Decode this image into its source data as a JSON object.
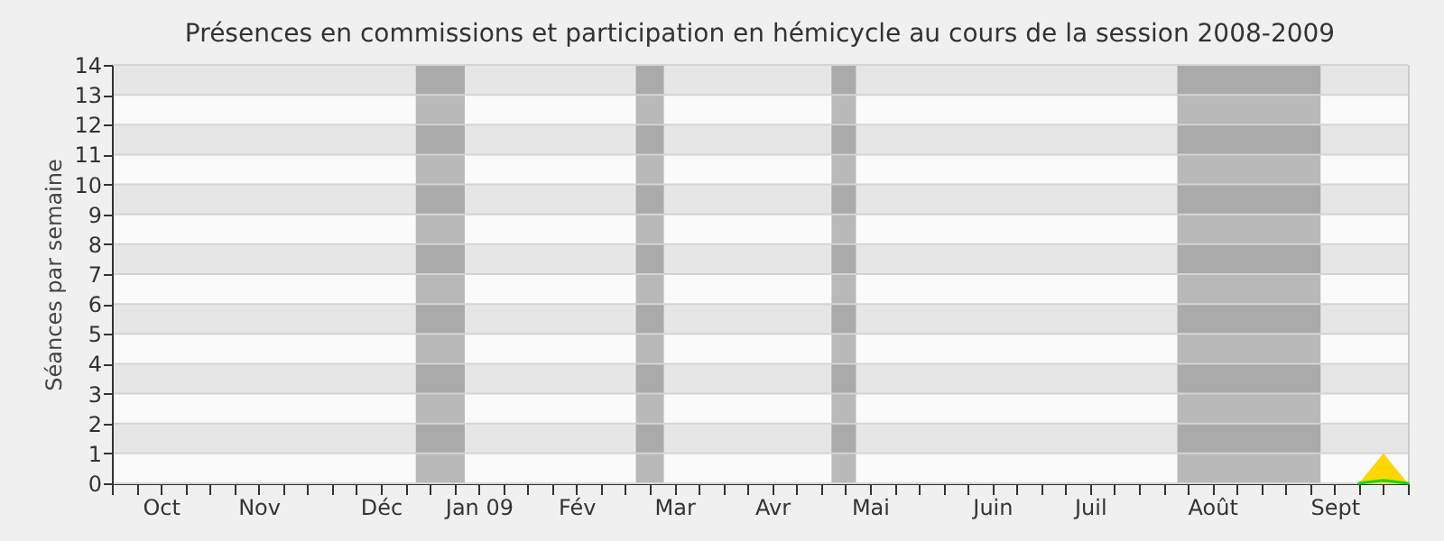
{
  "chart_data": {
    "type": "line",
    "title": "Présences en commissions et participation en hémicycle au cours de la session 2008-2009",
    "ylabel": "Séances par semaine",
    "x": [
      "2008-09-22",
      "2008-09-29",
      "2008-10-06",
      "2008-10-13",
      "2008-10-20",
      "2008-10-27",
      "2008-11-03",
      "2008-11-10",
      "2008-11-17",
      "2008-11-24",
      "2008-12-01",
      "2008-12-08",
      "2008-12-15",
      "2008-12-22",
      "2008-12-29",
      "2009-01-05",
      "2009-01-12",
      "2009-01-19",
      "2009-01-26",
      "2009-02-02",
      "2009-02-09",
      "2009-02-16",
      "2009-02-23",
      "2009-03-02",
      "2009-03-09",
      "2009-03-16",
      "2009-03-23",
      "2009-03-30",
      "2009-04-06",
      "2009-04-13",
      "2009-04-20",
      "2009-04-27",
      "2009-05-04",
      "2009-05-11",
      "2009-05-18",
      "2009-05-25",
      "2009-06-01",
      "2009-06-08",
      "2009-06-15",
      "2009-06-22",
      "2009-06-29",
      "2009-07-06",
      "2009-07-13",
      "2009-07-20",
      "2009-07-27",
      "2009-08-03",
      "2009-08-10",
      "2009-08-17",
      "2009-08-24",
      "2009-08-31",
      "2009-09-07",
      "2009-09-14",
      "2009-09-21",
      "2009-09-28"
    ],
    "series": [
      {
        "type": "area",
        "color": "#ffd700",
        "values": [
          0,
          0,
          0,
          0,
          0,
          0,
          0,
          0,
          0,
          0,
          0,
          0,
          0,
          0,
          0,
          0,
          0,
          0,
          0,
          0,
          0,
          0,
          0,
          0,
          0,
          0,
          0,
          0,
          0,
          0,
          0,
          0,
          0,
          0,
          0,
          0,
          0,
          0,
          0,
          0,
          0,
          0,
          0,
          0,
          0,
          0,
          0,
          0,
          0,
          0,
          0,
          0,
          1,
          0
        ]
      },
      {
        "color": "#00dd00",
        "values": [
          null,
          null,
          null,
          null,
          null,
          null,
          null,
          null,
          null,
          null,
          null,
          null,
          null,
          null,
          null,
          null,
          null,
          null,
          null,
          null,
          null,
          null,
          null,
          null,
          null,
          null,
          null,
          null,
          null,
          null,
          null,
          null,
          null,
          null,
          null,
          null,
          null,
          null,
          null,
          null,
          null,
          null,
          null,
          null,
          null,
          null,
          null,
          null,
          null,
          null,
          null,
          0,
          0.1,
          0
        ]
      }
    ],
    "xlim": [
      "2008-09-22",
      "2009-09-28"
    ],
    "xticks": [
      {
        "value": "2008-09-22",
        "label": null
      },
      {
        "value": "2008-09-29",
        "label": null
      },
      {
        "value": "2008-10-06",
        "label": "Oct"
      },
      {
        "value": "2008-10-13",
        "label": null
      },
      {
        "value": "2008-10-20",
        "label": null
      },
      {
        "value": "2008-10-27",
        "label": null
      },
      {
        "value": "2008-11-03",
        "label": "Nov"
      },
      {
        "value": "2008-11-10",
        "label": null
      },
      {
        "value": "2008-11-17",
        "label": null
      },
      {
        "value": "2008-11-24",
        "label": null
      },
      {
        "value": "2008-12-01",
        "label": null
      },
      {
        "value": "2008-12-08",
        "label": "Déc"
      },
      {
        "value": "2008-12-15",
        "label": null
      },
      {
        "value": "2008-12-22",
        "label": null
      },
      {
        "value": "2008-12-29",
        "label": null
      },
      {
        "value": "2009-01-05",
        "label": "Jan 09"
      },
      {
        "value": "2009-01-12",
        "label": null
      },
      {
        "value": "2009-01-19",
        "label": null
      },
      {
        "value": "2009-01-26",
        "label": null
      },
      {
        "value": "2009-02-02",
        "label": "Fév"
      },
      {
        "value": "2009-02-09",
        "label": null
      },
      {
        "value": "2009-02-16",
        "label": null
      },
      {
        "value": "2009-02-23",
        "label": null
      },
      {
        "value": "2009-03-02",
        "label": "Mar"
      },
      {
        "value": "2009-03-09",
        "label": null
      },
      {
        "value": "2009-03-16",
        "label": null
      },
      {
        "value": "2009-03-23",
        "label": null
      },
      {
        "value": "2009-03-30",
        "label": "Avr"
      },
      {
        "value": "2009-04-06",
        "label": null
      },
      {
        "value": "2009-04-13",
        "label": null
      },
      {
        "value": "2009-04-20",
        "label": null
      },
      {
        "value": "2009-04-27",
        "label": "Mai"
      },
      {
        "value": "2009-05-04",
        "label": null
      },
      {
        "value": "2009-05-11",
        "label": null
      },
      {
        "value": "2009-05-18",
        "label": null
      },
      {
        "value": "2009-05-25",
        "label": null
      },
      {
        "value": "2009-06-01",
        "label": "Juin"
      },
      {
        "value": "2009-06-08",
        "label": null
      },
      {
        "value": "2009-06-15",
        "label": null
      },
      {
        "value": "2009-06-22",
        "label": null
      },
      {
        "value": "2009-06-29",
        "label": "Juil"
      },
      {
        "value": "2009-07-06",
        "label": null
      },
      {
        "value": "2009-07-13",
        "label": null
      },
      {
        "value": "2009-07-20",
        "label": null
      },
      {
        "value": "2009-07-27",
        "label": null
      },
      {
        "value": "2009-08-03",
        "label": "Août"
      },
      {
        "value": "2009-08-10",
        "label": null
      },
      {
        "value": "2009-08-17",
        "label": null
      },
      {
        "value": "2009-08-24",
        "label": null
      },
      {
        "value": "2009-08-31",
        "label": null
      },
      {
        "value": "2009-09-07",
        "label": "Sept"
      },
      {
        "value": "2009-09-14",
        "label": null
      },
      {
        "value": "2009-09-21",
        "label": null
      },
      {
        "value": "2009-09-28",
        "label": null
      }
    ],
    "ylim": [
      0,
      14
    ],
    "yticks": [
      0,
      1,
      2,
      3,
      4,
      5,
      6,
      7,
      8,
      9,
      10,
      11,
      12,
      13,
      14
    ],
    "grid": "y",
    "bands": [
      {
        "axis": "x",
        "from": "2008-12-18",
        "to": "2009-01-01",
        "color": "#bdbdbd"
      },
      {
        "axis": "x",
        "from": "2009-02-19",
        "to": "2009-02-27",
        "color": "#bdbdbd"
      },
      {
        "axis": "x",
        "from": "2009-04-16",
        "to": "2009-04-23",
        "color": "#bdbdbd"
      },
      {
        "axis": "x",
        "from": "2009-07-24",
        "to": "2009-09-03",
        "color": "#bdbdbd"
      }
    ]
  }
}
